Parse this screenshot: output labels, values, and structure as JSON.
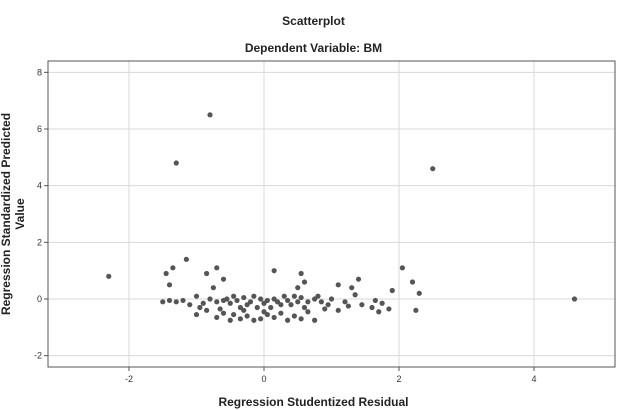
{
  "chart_data": {
    "type": "scatter",
    "title": "Scatterplot",
    "subtitle": "Dependent Variable: BM",
    "xlabel": "Regression Studentized Residual",
    "ylabel": "Regression Standardized Predicted Value",
    "xlim": [
      -3.2,
      5.2
    ],
    "ylim": [
      -2.4,
      8.4
    ],
    "xticks": [
      -2,
      0,
      2,
      4
    ],
    "yticks": [
      -2,
      0,
      2,
      4,
      6,
      8
    ],
    "grid": true,
    "point_color": "#555555",
    "points": [
      {
        "x": -2.3,
        "y": 0.8
      },
      {
        "x": -1.3,
        "y": 4.8
      },
      {
        "x": -0.8,
        "y": 6.5
      },
      {
        "x": 2.5,
        "y": 4.6
      },
      {
        "x": 4.6,
        "y": 0.0
      },
      {
        "x": -1.15,
        "y": 1.4
      },
      {
        "x": -1.45,
        "y": 0.9
      },
      {
        "x": -1.4,
        "y": 0.5
      },
      {
        "x": -1.35,
        "y": 1.1
      },
      {
        "x": -0.85,
        "y": 0.9
      },
      {
        "x": -0.7,
        "y": 1.1
      },
      {
        "x": -0.6,
        "y": 0.7
      },
      {
        "x": -0.75,
        "y": 0.4
      },
      {
        "x": 0.15,
        "y": 1.0
      },
      {
        "x": 0.55,
        "y": 0.9
      },
      {
        "x": 0.6,
        "y": 0.6
      },
      {
        "x": 0.5,
        "y": 0.4
      },
      {
        "x": 1.1,
        "y": 0.5
      },
      {
        "x": 1.3,
        "y": 0.4
      },
      {
        "x": 1.4,
        "y": 0.7
      },
      {
        "x": 2.05,
        "y": 1.1
      },
      {
        "x": 2.2,
        "y": 0.6
      },
      {
        "x": 2.3,
        "y": 0.2
      },
      {
        "x": 1.9,
        "y": 0.3
      },
      {
        "x": 2.25,
        "y": -0.4
      },
      {
        "x": -1.5,
        "y": -0.1
      },
      {
        "x": -1.4,
        "y": -0.05
      },
      {
        "x": -1.3,
        "y": -0.1
      },
      {
        "x": -1.2,
        "y": -0.05
      },
      {
        "x": -1.1,
        "y": -0.2
      },
      {
        "x": -1.0,
        "y": 0.1
      },
      {
        "x": -0.95,
        "y": -0.3
      },
      {
        "x": -0.9,
        "y": -0.15
      },
      {
        "x": -0.8,
        "y": 0.0
      },
      {
        "x": -0.7,
        "y": -0.1
      },
      {
        "x": -0.65,
        "y": -0.35
      },
      {
        "x": -0.6,
        "y": -0.05
      },
      {
        "x": -0.55,
        "y": 0.0
      },
      {
        "x": -0.5,
        "y": -0.15
      },
      {
        "x": -0.45,
        "y": 0.1
      },
      {
        "x": -0.4,
        "y": -0.05
      },
      {
        "x": -0.35,
        "y": -0.3
      },
      {
        "x": -0.3,
        "y": 0.05
      },
      {
        "x": -0.25,
        "y": -0.2
      },
      {
        "x": -0.2,
        "y": -0.1
      },
      {
        "x": -0.15,
        "y": 0.1
      },
      {
        "x": -0.1,
        "y": -0.3
      },
      {
        "x": -0.05,
        "y": 0.0
      },
      {
        "x": 0.0,
        "y": -0.15
      },
      {
        "x": 0.05,
        "y": -0.05
      },
      {
        "x": 0.1,
        "y": -0.3
      },
      {
        "x": 0.15,
        "y": 0.0
      },
      {
        "x": 0.2,
        "y": -0.1
      },
      {
        "x": 0.25,
        "y": -0.2
      },
      {
        "x": 0.3,
        "y": 0.1
      },
      {
        "x": 0.35,
        "y": -0.05
      },
      {
        "x": 0.4,
        "y": -0.2
      },
      {
        "x": 0.45,
        "y": 0.1
      },
      {
        "x": 0.5,
        "y": -0.1
      },
      {
        "x": 0.55,
        "y": 0.05
      },
      {
        "x": 0.6,
        "y": -0.3
      },
      {
        "x": 0.65,
        "y": -0.1
      },
      {
        "x": 0.75,
        "y": 0.0
      },
      {
        "x": 0.85,
        "y": -0.1
      },
      {
        "x": 0.95,
        "y": -0.2
      },
      {
        "x": -1.0,
        "y": -0.55
      },
      {
        "x": -0.85,
        "y": -0.4
      },
      {
        "x": -0.7,
        "y": -0.65
      },
      {
        "x": -0.6,
        "y": -0.5
      },
      {
        "x": -0.5,
        "y": -0.75
      },
      {
        "x": -0.45,
        "y": -0.55
      },
      {
        "x": -0.35,
        "y": -0.7
      },
      {
        "x": -0.25,
        "y": -0.6
      },
      {
        "x": -0.15,
        "y": -0.75
      },
      {
        "x": -0.05,
        "y": -0.7
      },
      {
        "x": 0.05,
        "y": -0.55
      },
      {
        "x": 0.15,
        "y": -0.65
      },
      {
        "x": 0.25,
        "y": -0.5
      },
      {
        "x": 0.35,
        "y": -0.75
      },
      {
        "x": 0.45,
        "y": -0.6
      },
      {
        "x": 0.55,
        "y": -0.7
      },
      {
        "x": 0.65,
        "y": -0.45
      },
      {
        "x": 0.75,
        "y": -0.75
      },
      {
        "x": -0.3,
        "y": -0.4
      },
      {
        "x": 0.0,
        "y": -0.45
      },
      {
        "x": 0.8,
        "y": 0.1
      },
      {
        "x": 1.0,
        "y": 0.0
      },
      {
        "x": 1.2,
        "y": -0.1
      },
      {
        "x": 1.35,
        "y": 0.15
      },
      {
        "x": 1.45,
        "y": -0.2
      },
      {
        "x": 1.65,
        "y": -0.05
      },
      {
        "x": 1.75,
        "y": -0.15
      },
      {
        "x": 1.7,
        "y": -0.45
      },
      {
        "x": 1.85,
        "y": -0.35
      },
      {
        "x": 1.6,
        "y": -0.3
      },
      {
        "x": 0.9,
        "y": -0.35
      },
      {
        "x": 1.1,
        "y": -0.4
      },
      {
        "x": 1.25,
        "y": -0.25
      }
    ]
  }
}
